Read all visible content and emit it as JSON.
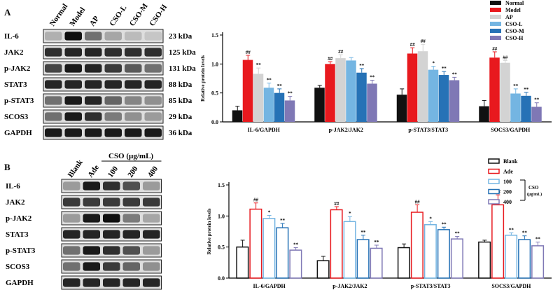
{
  "panel_a": {
    "letter": "A",
    "lanes": [
      "Normal",
      "Model",
      "AP",
      "CSO-L",
      "CSO-M",
      "CSO-H"
    ],
    "proteins": [
      "IL-6",
      "JAK2",
      "p-JAK2",
      "STAT3",
      "p-STAT3",
      "SCOS3",
      "GAPDH"
    ],
    "kda": [
      "23 kDa",
      "125 kDa",
      "131 kDa",
      "88 kDa",
      "85 kDa",
      "29 kDa",
      "36 kDa"
    ]
  },
  "panel_b": {
    "letter": "B",
    "lanes": [
      "Blank",
      "Ade",
      "100",
      "200",
      "400"
    ],
    "group_label": "CSO (µg/mL)",
    "proteins": [
      "IL-6",
      "JAK2",
      "p-JAK2",
      "STAT3",
      "p-STAT3",
      "SCOS3",
      "GAPDH"
    ]
  },
  "colors": {
    "a": [
      "#111111",
      "#e8191e",
      "#d3d3d3",
      "#74b5e2",
      "#2672b6",
      "#7f78b5"
    ],
    "b": [
      "#111111",
      "#e8191e",
      "#74b5e2",
      "#2672b6",
      "#7f78b5"
    ]
  },
  "chart_data": [
    {
      "type": "bar",
      "title": "",
      "xlabel": "",
      "ylabel": "Relative protein levels",
      "ylim": [
        0,
        1.5
      ],
      "yticks": [
        "0.0",
        "0.5",
        "1.0",
        "1.5"
      ],
      "categories": [
        "IL-6/GAPDH",
        "p-JAK2/JAK2",
        "p-STAT3/STAT3",
        "SOCS3/GAPDH"
      ],
      "series": [
        {
          "name": "Normal",
          "values": [
            0.2,
            0.59,
            0.47,
            0.27
          ],
          "errors": [
            0.07,
            0.04,
            0.1,
            0.1
          ],
          "marks": [
            "",
            "",
            "",
            ""
          ]
        },
        {
          "name": "Model",
          "values": [
            1.07,
            1.0,
            1.18,
            1.11
          ],
          "errors": [
            0.08,
            0.04,
            0.1,
            0.1
          ],
          "marks": [
            "##",
            "##",
            "##",
            "##"
          ]
        },
        {
          "name": "AP",
          "values": [
            0.83,
            1.1,
            1.22,
            1.02
          ],
          "errors": [
            0.1,
            0.06,
            0.12,
            0.04
          ],
          "marks": [
            "**",
            "##",
            "##",
            "##"
          ]
        },
        {
          "name": "CSO-L",
          "values": [
            0.59,
            1.06,
            0.9,
            0.49
          ],
          "errors": [
            0.08,
            0.05,
            0.06,
            0.08
          ],
          "marks": [
            "**",
            "",
            "*",
            "**"
          ]
        },
        {
          "name": "CSO-M",
          "values": [
            0.5,
            0.85,
            0.81,
            0.45
          ],
          "errors": [
            0.07,
            0.07,
            0.06,
            0.06
          ],
          "marks": [
            "**",
            "**",
            "**",
            "**"
          ]
        },
        {
          "name": "CSO-H",
          "values": [
            0.37,
            0.66,
            0.72,
            0.26
          ],
          "errors": [
            0.07,
            0.06,
            0.05,
            0.07
          ],
          "marks": [
            "**",
            "**",
            "**",
            "**"
          ]
        }
      ],
      "legend": "right"
    },
    {
      "type": "bar",
      "title": "",
      "xlabel": "",
      "ylabel": "Relative protein levels",
      "ylim": [
        0,
        1.5
      ],
      "yticks": [
        "0.0",
        "0.5",
        "1.0",
        "1.5"
      ],
      "categories": [
        "IL-6/GAPDH",
        "p-JAK2/JAK2",
        "p-STAT3/STAT3",
        "SOCS3/GAPDH"
      ],
      "series": [
        {
          "name": "Blank",
          "values": [
            0.5,
            0.28,
            0.49,
            0.58
          ],
          "errors": [
            0.11,
            0.07,
            0.06,
            0.03
          ],
          "marks": [
            "",
            "",
            "",
            ""
          ]
        },
        {
          "name": "Ade",
          "values": [
            1.11,
            1.1,
            1.06,
            1.18
          ],
          "errors": [
            0.1,
            0.05,
            0.12,
            0.16
          ],
          "marks": [
            "##",
            "##",
            "##",
            "##"
          ]
        },
        {
          "name": "100",
          "values": [
            0.96,
            0.91,
            0.86,
            0.69
          ],
          "errors": [
            0.05,
            0.08,
            0.05,
            0.04
          ],
          "marks": [
            "*",
            "*",
            "*",
            "**"
          ]
        },
        {
          "name": "200",
          "values": [
            0.81,
            0.62,
            0.78,
            0.62
          ],
          "errors": [
            0.07,
            0.07,
            0.04,
            0.06
          ],
          "marks": [
            "**",
            "**",
            "**",
            "**"
          ]
        },
        {
          "name": "400",
          "values": [
            0.45,
            0.48,
            0.63,
            0.52
          ],
          "errors": [
            0.04,
            0.05,
            0.04,
            0.06
          ],
          "marks": [
            "**",
            "**",
            "**",
            "**"
          ]
        }
      ],
      "legend": "right",
      "legend_group_label": [
        "CSO",
        "(µg/mL)"
      ]
    }
  ]
}
